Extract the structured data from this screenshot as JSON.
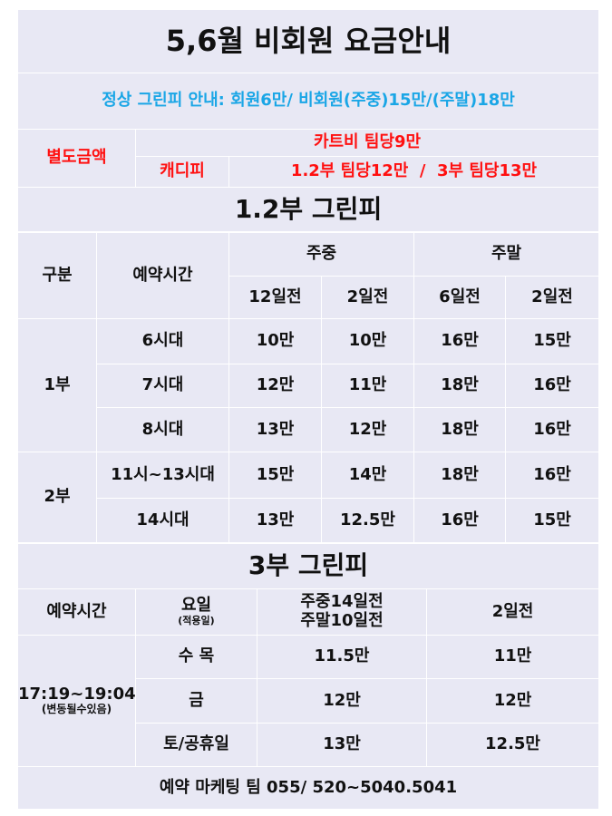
{
  "title": "5,6월 비회원 요금안내",
  "notice": "정상 그린피 안내: 회원6만/ 비회원(주중)15만/(주말)18만",
  "extra": {
    "label": "별도금액",
    "cart_fee": "카트비 팀당9만",
    "caddie_label": "캐디피",
    "caddie_fee": "1.2부 팀당12만  /  3부 팀당13만"
  },
  "part12": {
    "title": "1.2부 그린피",
    "headers": {
      "division": "구분",
      "time": "예약시간",
      "weekday": "주중",
      "weekend": "주말",
      "sub": [
        "12일전",
        "2일전",
        "6일전",
        "2일전"
      ]
    },
    "groups": [
      {
        "name": "1부",
        "rows": [
          {
            "time": "6시대",
            "values": [
              "10만",
              "10만",
              "16만",
              "15만"
            ]
          },
          {
            "time": "7시대",
            "values": [
              "12만",
              "11만",
              "18만",
              "16만"
            ]
          },
          {
            "time": "8시대",
            "values": [
              "13만",
              "12만",
              "18만",
              "16만"
            ]
          }
        ]
      },
      {
        "name": "2부",
        "rows": [
          {
            "time": "11시~13시대",
            "values": [
              "15만",
              "14만",
              "18만",
              "16만"
            ]
          },
          {
            "time": "14시대",
            "values": [
              "13만",
              "12.5만",
              "16만",
              "15만"
            ]
          }
        ]
      }
    ]
  },
  "part3": {
    "title": "3부 그린피",
    "headers": {
      "time": "예약시간",
      "day": "요일",
      "day_note": "(적용일)",
      "early1": "주중14일전",
      "early2": "주말10일전",
      "late": "2일전"
    },
    "time": "17:19~19:04",
    "time_note": "(변동될수있음)",
    "rows": [
      {
        "day": "수 목",
        "values": [
          "11.5만",
          "11만"
        ]
      },
      {
        "day": "금",
        "values": [
          "12만",
          "12만"
        ]
      },
      {
        "day": "토/공휴일",
        "values": [
          "13만",
          "12.5만"
        ]
      }
    ]
  },
  "footer": "예약 마케팅 팀 055/ 520~5040.5041"
}
